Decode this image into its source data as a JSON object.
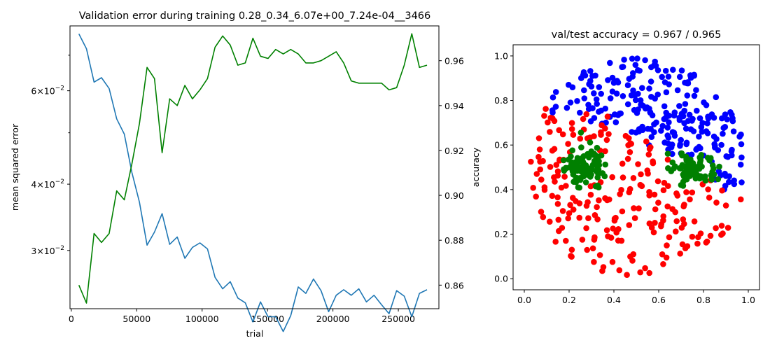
{
  "chart_data": [
    {
      "type": "line",
      "title": "Validation error during training 0.28_0.34_6.07e+00_7.24e-04__3466",
      "xlabel": "trial",
      "ylabel": "mean squared error",
      "y2label": "accuracy",
      "xlim": [
        -1000,
        281000
      ],
      "ylim_log": [
        0.0233,
        0.0795
      ],
      "y2lim": [
        0.8495,
        0.9755
      ],
      "x_ticks": [
        0,
        50000,
        100000,
        150000,
        200000,
        250000
      ],
      "x_tick_labels": [
        "0",
        "50000",
        "100000",
        "150000",
        "200000",
        "250000"
      ],
      "y_major_ticks": [
        0.03,
        0.04,
        0.06
      ],
      "y_major_tick_labels": [
        {
          "mant": "3",
          "exp": "−2"
        },
        {
          "mant": "4",
          "exp": "−2"
        },
        {
          "mant": "6",
          "exp": "−2"
        }
      ],
      "y_minor_ticks": [
        0.05,
        0.07
      ],
      "y2_ticks": [
        0.86,
        0.88,
        0.9,
        0.92,
        0.94,
        0.96
      ],
      "y2_tick_labels": [
        "0.86",
        "0.88",
        "0.90",
        "0.92",
        "0.94",
        "0.96"
      ],
      "x": [
        5800,
        11600,
        17400,
        23100,
        28900,
        34700,
        40500,
        46300,
        52100,
        57900,
        63600,
        69400,
        75200,
        81000,
        86800,
        92600,
        98300,
        104100,
        109900,
        115700,
        121500,
        127300,
        133000,
        138800,
        144600,
        150400,
        156200,
        162000,
        167700,
        173500,
        179300,
        185100,
        190900,
        196700,
        202500,
        208200,
        214000,
        219800,
        225600,
        231400,
        237200,
        242900,
        248700,
        254500,
        260300,
        266100,
        271900
      ],
      "series": [
        {
          "name": "mean squared error",
          "axis": "left",
          "color": "#1f77b4",
          "values": [
            0.0768,
            0.072,
            0.0623,
            0.0635,
            0.0606,
            0.0531,
            0.0497,
            0.0421,
            0.037,
            0.0307,
            0.0325,
            0.0352,
            0.0308,
            0.0318,
            0.029,
            0.0304,
            0.031,
            0.0302,
            0.0267,
            0.0254,
            0.0262,
            0.0244,
            0.0239,
            0.022,
            0.024,
            0.0225,
            0.0225,
            0.0211,
            0.0226,
            0.0256,
            0.0249,
            0.0265,
            0.0252,
            0.023,
            0.0247,
            0.0253,
            0.0247,
            0.0254,
            0.024,
            0.0247,
            0.0237,
            0.0228,
            0.0252,
            0.0246,
            0.0225,
            0.0249,
            0.0253
          ]
        },
        {
          "name": "accuracy",
          "axis": "right",
          "color": "#008000",
          "values": [
            0.86,
            0.852,
            0.883,
            0.879,
            0.883,
            0.902,
            0.898,
            0.914,
            0.932,
            0.957,
            0.952,
            0.919,
            0.943,
            0.94,
            0.949,
            0.943,
            0.947,
            0.952,
            0.966,
            0.971,
            0.967,
            0.958,
            0.959,
            0.97,
            0.962,
            0.961,
            0.965,
            0.963,
            0.965,
            0.963,
            0.959,
            0.959,
            0.96,
            0.962,
            0.964,
            0.959,
            0.951,
            0.95,
            0.95,
            0.95,
            0.95,
            0.947,
            0.948,
            0.958,
            0.972,
            0.957,
            0.958
          ]
        }
      ]
    },
    {
      "type": "scatter",
      "title": "val/test accuracy = 0.967 / 0.965",
      "xlim": [
        -0.05,
        1.05
      ],
      "ylim": [
        -0.05,
        1.05
      ],
      "x_ticks": [
        0.0,
        0.2,
        0.4,
        0.6,
        0.8,
        1.0
      ],
      "x_tick_labels": [
        "0.0",
        "0.2",
        "0.4",
        "0.6",
        "0.8",
        "1.0"
      ],
      "y_ticks": [
        0.0,
        0.2,
        0.4,
        0.6,
        0.8,
        1.0
      ],
      "y_tick_labels": [
        "0.0",
        "0.2",
        "0.4",
        "0.6",
        "0.8",
        "1.0"
      ],
      "series": [
        {
          "name": "class blue",
          "color": "#0000ff",
          "count": 240
        },
        {
          "name": "class red",
          "color": "#ff0000",
          "count": 220
        },
        {
          "name": "class green",
          "color": "#008000",
          "count": 175
        }
      ]
    }
  ]
}
